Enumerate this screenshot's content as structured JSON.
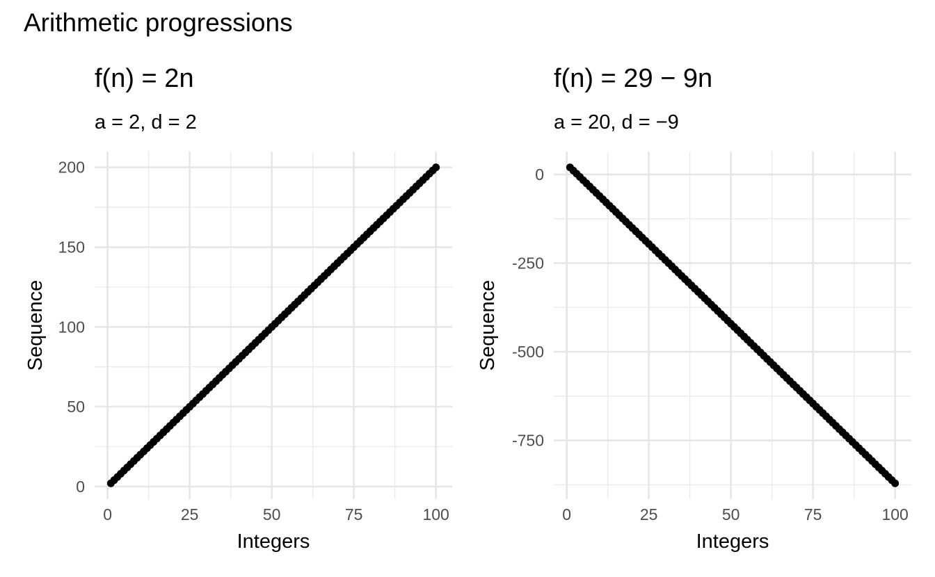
{
  "title": "Arithmetic progressions",
  "chart_data": [
    {
      "type": "scatter",
      "title": "f(n) = 2n",
      "subtitle": "a = 2, d = 2",
      "xlabel": "Integers",
      "ylabel": "Sequence",
      "formula": {
        "a": 2,
        "d": 2
      },
      "x_range": [
        1,
        100
      ],
      "xlim": [
        -3.95,
        104.95
      ],
      "ylim": [
        -7.9,
        209.9
      ],
      "x_ticks": [
        0,
        25,
        50,
        75,
        100
      ],
      "y_ticks": [
        0,
        50,
        100,
        150,
        200
      ],
      "x_minor": [
        12.5,
        37.5,
        62.5,
        87.5
      ],
      "y_minor": [
        25,
        75,
        125,
        175
      ],
      "grid": true,
      "legend": "none",
      "color": "#000000"
    },
    {
      "type": "scatter",
      "title": "f(n) = 29 − 9n",
      "subtitle": "a = 20, d = −9",
      "xlabel": "Integers",
      "ylabel": "Sequence",
      "formula": {
        "a": 20,
        "d": -9
      },
      "x_range": [
        1,
        100
      ],
      "xlim": [
        -3.95,
        104.95
      ],
      "ylim": [
        -915.55,
        64.55
      ],
      "x_ticks": [
        0,
        25,
        50,
        75,
        100
      ],
      "y_ticks": [
        0,
        -250,
        -500,
        -750
      ],
      "x_minor": [
        12.5,
        37.5,
        62.5,
        87.5
      ],
      "y_minor": [
        -125,
        -375,
        -625,
        -875
      ],
      "grid": true,
      "legend": "none",
      "color": "#000000"
    }
  ]
}
